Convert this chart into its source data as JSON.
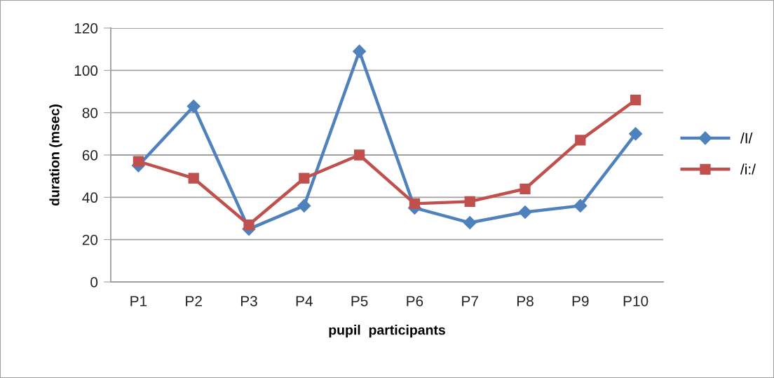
{
  "chart_data": {
    "type": "line",
    "xlabel": "pupil  participants",
    "ylabel": "duration (msec)",
    "categories": [
      "P1",
      "P2",
      "P3",
      "P4",
      "P5",
      "P6",
      "P7",
      "P8",
      "P9",
      "P10"
    ],
    "series": [
      {
        "name": "/I/",
        "color": "#4f81bd",
        "marker": "diamond",
        "values": [
          55,
          83,
          25,
          36,
          109,
          35,
          28,
          33,
          36,
          70
        ]
      },
      {
        "name": "/i:/",
        "color": "#c0504d",
        "marker": "square",
        "values": [
          57,
          49,
          27,
          49,
          60,
          37,
          38,
          44,
          67,
          86
        ]
      }
    ],
    "ylim": [
      0,
      120
    ],
    "yticks": [
      0,
      20,
      40,
      60,
      80,
      100,
      120
    ],
    "grid": "y",
    "legend": "right",
    "line_style": "solid"
  }
}
